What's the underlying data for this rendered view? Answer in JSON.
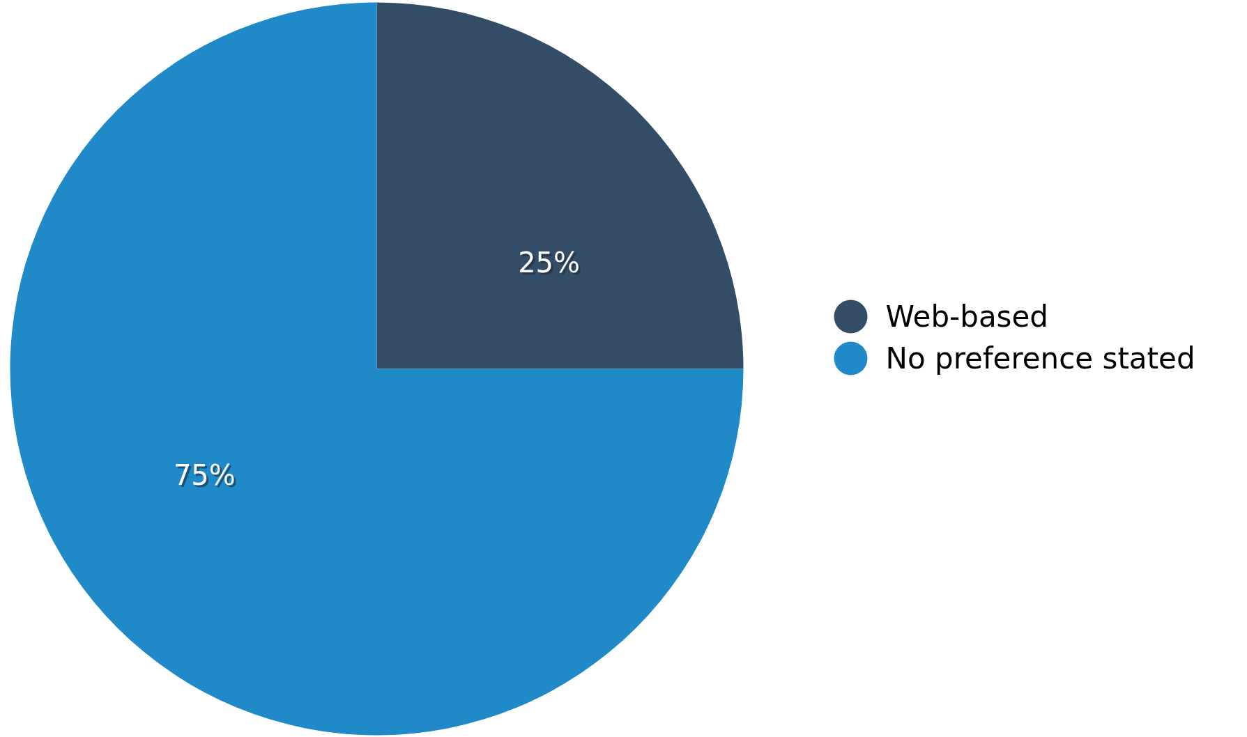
{
  "chart_data": {
    "type": "pie",
    "categories": [
      "Web-based",
      "No preference stated"
    ],
    "values": [
      25,
      75
    ],
    "colors": [
      "#344d66",
      "#2089c8"
    ],
    "value_labels": [
      "25%",
      "75%"
    ],
    "legend": "right"
  }
}
